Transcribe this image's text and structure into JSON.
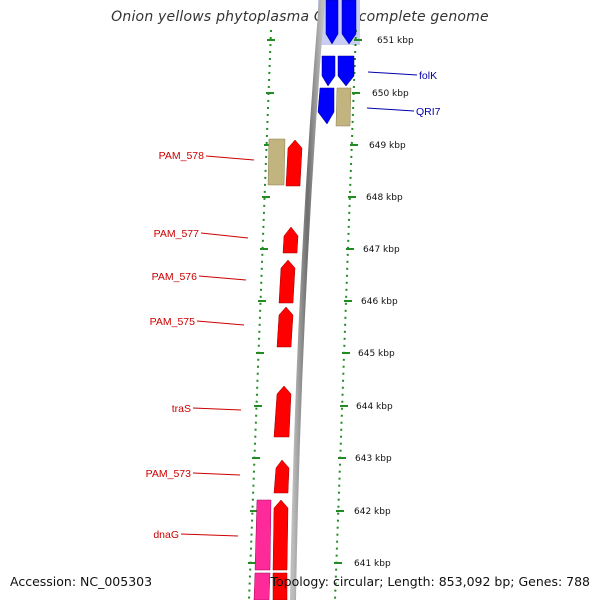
{
  "title": "Onion yellows phytoplasma OY-M, complete genome",
  "footer": {
    "accession": "Accession: NC_005303",
    "summary": "Topology: circular; Length: 853,092 bp; Genes: 788"
  },
  "colors": {
    "red_gene": "#ff0000",
    "blue_gene": "#0000ff",
    "pink_gene": "#ff2a9a",
    "khaki_gene": "#c2b47f",
    "red_label": "#cc0000",
    "blue_label": "#0000aa",
    "backbone": "#888888",
    "dotted_guides": "#228b22"
  },
  "scale_labels": [
    "651 kbp",
    "650 kbp",
    "649 kbp",
    "648 kbp",
    "647 kbp",
    "646 kbp",
    "645 kbp",
    "644 kbp",
    "643 kbp",
    "642 kbp",
    "641 kbp"
  ],
  "gene_labels": [
    "folK",
    "QRI7",
    "PAM_578",
    "PAM_577",
    "PAM_576",
    "PAM_575",
    "traS",
    "PAM_573",
    "dnaG"
  ]
}
